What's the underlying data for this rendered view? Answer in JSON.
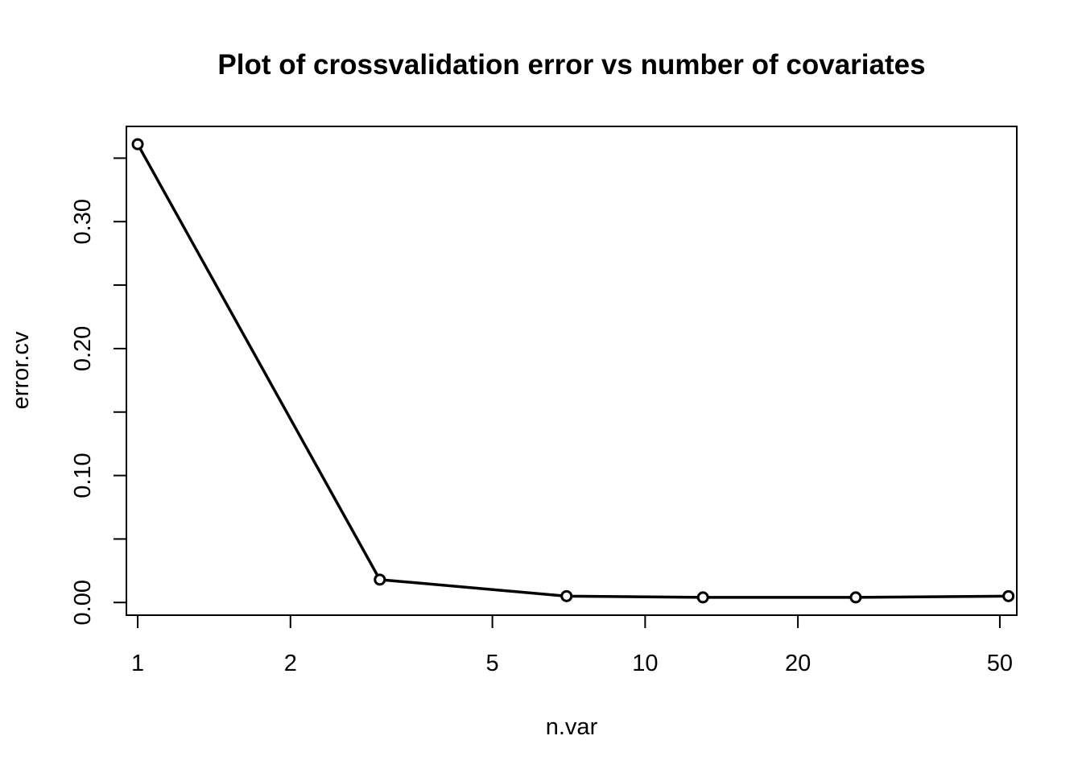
{
  "chart_data": {
    "type": "line",
    "title": "Plot of crossvalidation error vs number of covariates",
    "xlabel": "n.var",
    "ylabel": "error.cv",
    "x_scale": "log",
    "xlim": [
      0.95,
      54
    ],
    "ylim": [
      -0.01,
      0.375
    ],
    "x_ticks": [
      1,
      2,
      5,
      10,
      20,
      50
    ],
    "x_tick_labels": [
      "1",
      "2",
      "5",
      "10",
      "20",
      "50"
    ],
    "y_ticks": [
      0.0,
      0.05,
      0.1,
      0.15,
      0.2,
      0.25,
      0.3,
      0.35
    ],
    "y_tick_labels": [
      "0.00",
      "",
      "0.10",
      "",
      "0.20",
      "",
      "0.30",
      ""
    ],
    "grid": false,
    "legend": "none",
    "line_color": "#000000",
    "marker": "open-circle",
    "series": [
      {
        "x": [
          1,
          3,
          7,
          13,
          26,
          52
        ],
        "y": [
          0.361,
          0.018,
          0.005,
          0.004,
          0.004,
          0.005
        ]
      }
    ]
  }
}
